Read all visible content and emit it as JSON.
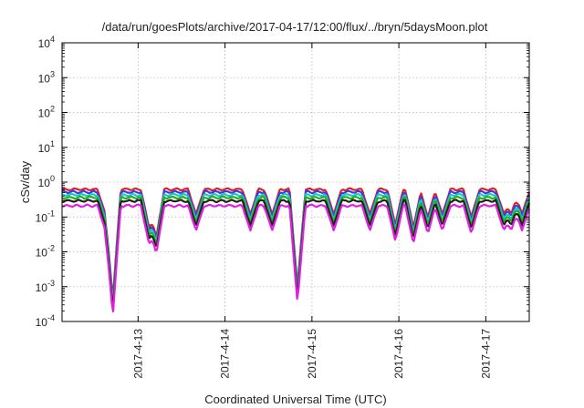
{
  "chart_data": {
    "type": "line",
    "title": "/data/run/goesPlots/archive/2017-04-17/12:00/flux/../bryn/5daysMoon.plot",
    "xlabel": "Coordinated Universal Time (UTC)",
    "ylabel": "cSv/day",
    "y_scale": "log",
    "ylim": [
      0.0001,
      10000
    ],
    "yticks": [
      {
        "value": 0.0001,
        "base": "10",
        "exp": "-4"
      },
      {
        "value": 0.001,
        "base": "10",
        "exp": "-3"
      },
      {
        "value": 0.01,
        "base": "10",
        "exp": "-2"
      },
      {
        "value": 0.1,
        "base": "10",
        "exp": "-1"
      },
      {
        "value": 1,
        "base": "10",
        "exp": "0"
      },
      {
        "value": 10,
        "base": "10",
        "exp": "1"
      },
      {
        "value": 100,
        "base": "10",
        "exp": "2"
      },
      {
        "value": 1000,
        "base": "10",
        "exp": "3"
      },
      {
        "value": 10000,
        "base": "10",
        "exp": "4"
      }
    ],
    "xlim": [
      "2017-04-12 03:00",
      "2017-04-17 12:00"
    ],
    "xticks": [
      {
        "value": "2017-04-13 00:00",
        "label": "2017-4-13"
      },
      {
        "value": "2017-04-14 00:00",
        "label": "2017-4-14"
      },
      {
        "value": "2017-04-15 00:00",
        "label": "2017-4-15"
      },
      {
        "value": "2017-04-16 00:00",
        "label": "2017-4-16"
      },
      {
        "value": "2017-04-17 00:00",
        "label": "2017-4-17"
      }
    ],
    "grid": true,
    "legend": "none",
    "series": [
      {
        "color": "#e0201c",
        "level": 0.62
      },
      {
        "color": "#3a3af0",
        "level": 0.52
      },
      {
        "color": "#20c8c0",
        "level": 0.43
      },
      {
        "color": "#20b020",
        "level": 0.36
      },
      {
        "color": "#202020",
        "level": 0.29
      },
      {
        "color": "#e020e0",
        "level": 0.21
      }
    ],
    "dips": [
      {
        "time": "2017-04-12 15:00",
        "min": 0.12
      },
      {
        "time": "2017-04-12 17:00",
        "min": 0.0004
      },
      {
        "time": "2017-04-13 03:00",
        "min": 0.05
      },
      {
        "time": "2017-04-13 05:00",
        "min": 0.025
      },
      {
        "time": "2017-04-13 16:00",
        "min": 0.12
      },
      {
        "time": "2017-04-14 07:00",
        "min": 0.12
      },
      {
        "time": "2017-04-14 13:00",
        "min": 0.12
      },
      {
        "time": "2017-04-14 20:00",
        "min": 0.001
      },
      {
        "time": "2017-04-15 06:00",
        "min": 0.12
      },
      {
        "time": "2017-04-15 16:00",
        "min": 0.12
      },
      {
        "time": "2017-04-15 23:00",
        "min": 0.06
      },
      {
        "time": "2017-04-16 04:00",
        "min": 0.05
      },
      {
        "time": "2017-04-16 08:00",
        "min": 0.1
      },
      {
        "time": "2017-04-16 12:00",
        "min": 0.12
      },
      {
        "time": "2017-04-16 20:00",
        "min": 0.1
      },
      {
        "time": "2017-04-17 05:00",
        "min": 0.12
      },
      {
        "time": "2017-04-17 07:00",
        "min": 0.12
      },
      {
        "time": "2017-04-17 10:00",
        "min": 0.12
      }
    ]
  }
}
